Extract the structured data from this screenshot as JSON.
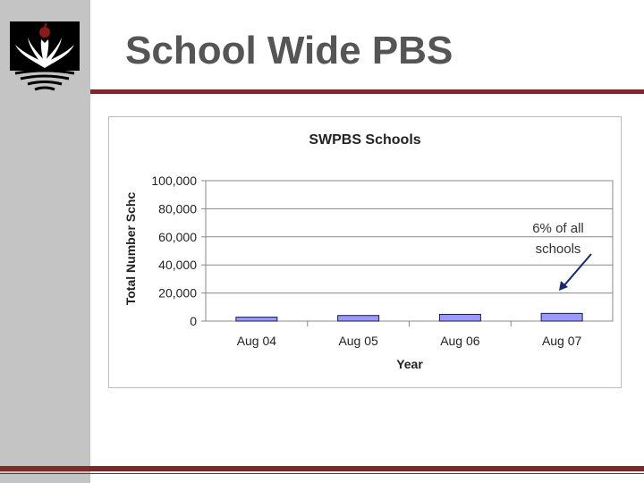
{
  "slide": {
    "title": "School Wide PBS",
    "accent_color": "#7a2a2a",
    "sidebar_color": "#c4c4c4",
    "logo_icon": "school-logo-icon"
  },
  "chart_data": {
    "type": "bar",
    "title": "SWPBS Schools",
    "xlabel": "Year",
    "ylabel": "Total Number Schc",
    "categories": [
      "Aug 04",
      "Aug 05",
      "Aug 06",
      "Aug 07"
    ],
    "values": [
      2800,
      4000,
      4800,
      5500
    ],
    "ylim": [
      0,
      100000
    ],
    "yticks": [
      "0",
      "20,000",
      "40,000",
      "60,000",
      "80,000",
      "100,000"
    ],
    "grid": true,
    "bar_color": "#9999ff",
    "annotation": {
      "lines": [
        "6% of all",
        "schools"
      ],
      "points_to": "Aug 07"
    }
  }
}
